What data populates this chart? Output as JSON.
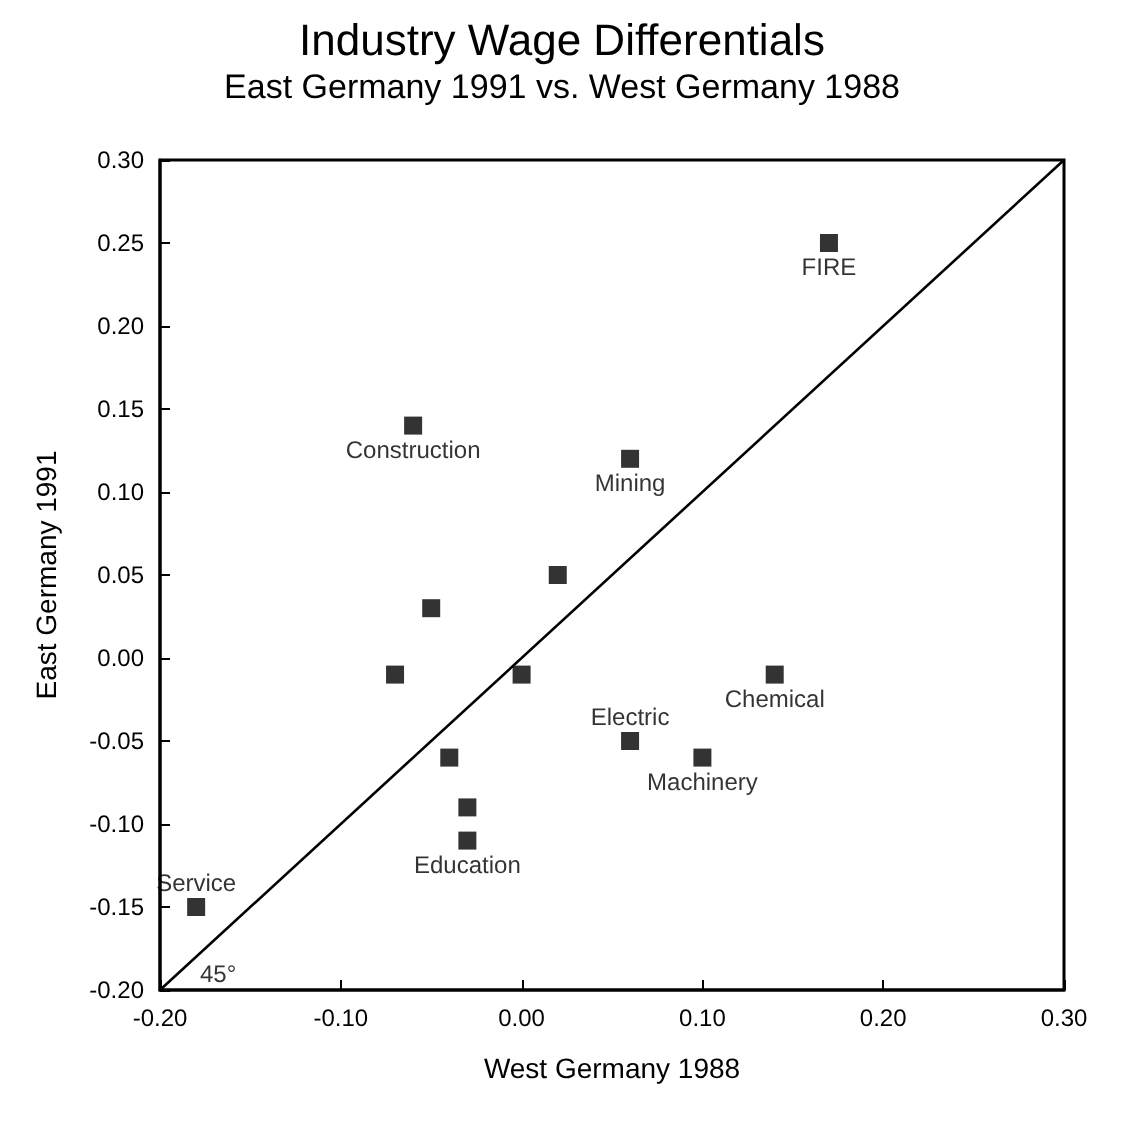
{
  "chart_data": {
    "type": "scatter",
    "title": "Industry Wage Differentials",
    "subtitle": "East Germany 1991 vs. West Germany 1988",
    "xlabel": "West Germany 1988",
    "ylabel": "East Germany 1991",
    "series": [
      {
        "color": "#000000",
        "marker": "square",
        "x": [
          0.17,
          0.14,
          0.1,
          0.06,
          0.06,
          0.02,
          0.0,
          -0.04,
          -0.03,
          -0.03,
          -0.06,
          -0.05,
          -0.07,
          -0.18
        ],
        "values": [
          0.25,
          -0.01,
          -0.06,
          0.12,
          -0.05,
          0.05,
          -0.01,
          -0.06,
          -0.09,
          -0.11,
          0.14,
          0.03,
          -0.01,
          -0.15
        ]
      },
      {
        "type": "line",
        "color": "#000000",
        "marker": "none",
        "x": [
          -0.2,
          0.3
        ],
        "values": [
          -0.2,
          0.3
        ]
      }
    ],
    "annotations": [
      {
        "text": "FIRE",
        "x": 0.17,
        "y": 0.25
      },
      {
        "text": "Chemical",
        "x": 0.14,
        "y": -0.01
      },
      {
        "text": "Machinery",
        "x": 0.1,
        "y": -0.06
      },
      {
        "text": "Mining",
        "x": 0.06,
        "y": 0.12
      },
      {
        "text": "Electric",
        "x": 0.06,
        "y": -0.05
      },
      {
        "text": "Education",
        "x": -0.03,
        "y": -0.11
      },
      {
        "text": "Construction",
        "x": -0.06,
        "y": 0.14
      },
      {
        "text": "Service",
        "x": -0.18,
        "y": -0.15
      },
      {
        "text": "45°",
        "x": -0.2,
        "y": -0.2
      }
    ],
    "xlim": [
      -0.2,
      0.3
    ],
    "ylim": [
      -0.2,
      0.3
    ],
    "xticks": [
      {
        "value": -0.2,
        "label": "-0.20"
      },
      {
        "value": -0.1,
        "label": "-0.10"
      },
      {
        "value": 0,
        "label": "0.00"
      },
      {
        "value": 0.1,
        "label": "0.10"
      },
      {
        "value": 0.2,
        "label": "0.20"
      },
      {
        "value": 0.3,
        "label": "0.30"
      }
    ],
    "yticks": [
      {
        "value": -0.2,
        "label": "-0.20"
      },
      {
        "value": -0.15,
        "label": "-0.15"
      },
      {
        "value": -0.1,
        "label": "-0.10"
      },
      {
        "value": -0.05,
        "label": "-0.05"
      },
      {
        "value": 0,
        "label": "0.00"
      },
      {
        "value": 0.05,
        "label": "0.05"
      },
      {
        "value": 0.1,
        "label": "0.10"
      },
      {
        "value": 0.15,
        "label": "0.15"
      },
      {
        "value": 0.2,
        "label": "0.20"
      },
      {
        "value": 0.25,
        "label": "0.25"
      },
      {
        "value": 0.3,
        "label": "0.30"
      }
    ],
    "grid": false
  }
}
